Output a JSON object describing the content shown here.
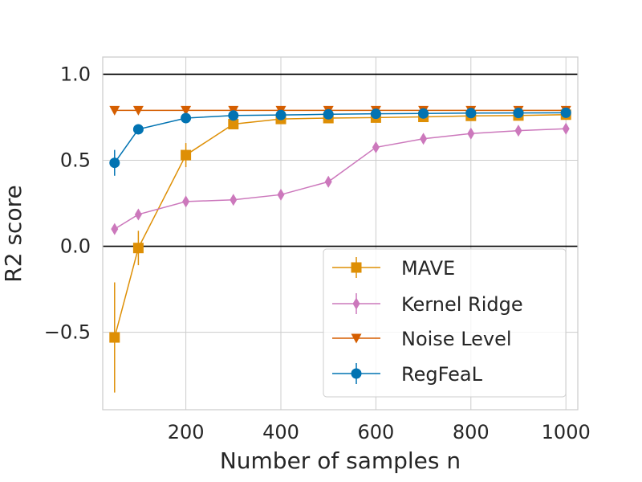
{
  "chart_data": {
    "type": "line",
    "title": "",
    "xlabel": "Number of samples n",
    "ylabel": "R2 score",
    "xlim": [
      25,
      1025
    ],
    "ylim": [
      -0.95,
      1.1
    ],
    "xticks": [
      200,
      400,
      600,
      800,
      1000
    ],
    "xtick_labels": [
      "200",
      "400",
      "600",
      "800",
      "1000"
    ],
    "yticks": [
      -0.5,
      0.0,
      0.5,
      1.0
    ],
    "ytick_labels": [
      "−0.5",
      "0.0",
      "0.5",
      "1.0"
    ],
    "hlines": [
      1.0,
      0.0
    ],
    "grid": true,
    "legend_position": "lower-right",
    "x": [
      50,
      100,
      200,
      300,
      400,
      500,
      600,
      700,
      800,
      900,
      1000
    ],
    "series": [
      {
        "name": "MAVE",
        "color": "#DE8F05",
        "marker": "square",
        "values": [
          -0.53,
          -0.01,
          0.53,
          0.71,
          0.74,
          0.745,
          0.748,
          0.752,
          0.758,
          0.76,
          0.765
        ],
        "errors": [
          0.32,
          0.1,
          0.07,
          0.02,
          0.015,
          0.01,
          0.01,
          0.01,
          0.01,
          0.01,
          0.01
        ]
      },
      {
        "name": "Kernel Ridge",
        "color": "#CC78BC",
        "marker": "thin_diamond",
        "values": [
          0.1,
          0.185,
          0.26,
          0.27,
          0.3,
          0.375,
          0.575,
          0.625,
          0.655,
          0.672,
          0.683
        ],
        "errors": [
          0.03,
          0.025,
          0.02,
          0.02,
          0.02,
          0.03,
          0.025,
          0.015,
          0.015,
          0.015,
          0.015
        ]
      },
      {
        "name": "Noise Level",
        "color": "#D55E00",
        "marker": "triangle_down",
        "values": [
          0.79,
          0.79,
          0.79,
          0.79,
          0.79,
          0.79,
          0.79,
          0.79,
          0.79,
          0.79,
          0.79
        ],
        "errors": [
          0,
          0,
          0,
          0,
          0,
          0,
          0,
          0,
          0,
          0,
          0
        ]
      },
      {
        "name": "RegFeaL",
        "color": "#0173B2",
        "marker": "circle",
        "values": [
          0.485,
          0.68,
          0.745,
          0.76,
          0.763,
          0.767,
          0.77,
          0.772,
          0.774,
          0.775,
          0.776
        ],
        "errors": [
          0.075,
          0.02,
          0.02,
          0.015,
          0.015,
          0.01,
          0.01,
          0.01,
          0.01,
          0.01,
          0.01
        ]
      }
    ]
  }
}
